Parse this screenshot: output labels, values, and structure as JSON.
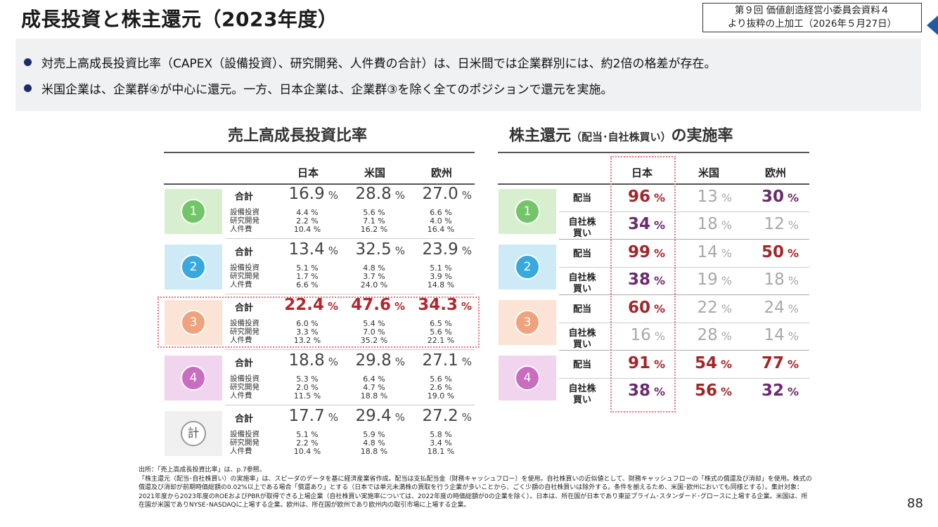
{
  "title": "成長投資と株主還元（2023年度）",
  "source_box": {
    "line1": "第９回 価値創造経営小委員会資料４",
    "line2": "より抜粋の上加工（2026年５月27日）"
  },
  "bullets": [
    "対売上高成長投資比率（CAPEX（設備投資）、研究開発、人件費の合計）は、日米間では企業群別には、約2倍の格差が存在。",
    "米国企業は、企業群④が中心に還元。一方、日本企業は、企業群③を除く全てのポジションで還元を実施。"
  ],
  "left": {
    "title": "売上高成長投資比率",
    "cols": [
      "日本",
      "米国",
      "欧州"
    ],
    "total_label": "合計",
    "sub_labels": [
      "設備投資",
      "研究開発",
      "人件費"
    ],
    "pct": "%",
    "groups": [
      {
        "badge": "1",
        "color": "#d7efcf",
        "circle": "#74c46a",
        "total": [
          "16.9",
          "28.8",
          "27.0"
        ],
        "sub": [
          [
            "4.4 %",
            "2.2 %",
            "10.4 %"
          ],
          [
            "5.6 %",
            "7.1 %",
            "16.2 %"
          ],
          [
            "6.6 %",
            "4.0 %",
            "16.4 %"
          ]
        ]
      },
      {
        "badge": "2",
        "color": "#cfeaf7",
        "circle": "#39a9dd",
        "total": [
          "13.4",
          "32.5",
          "23.9"
        ],
        "sub": [
          [
            "5.1 %",
            "1.7 %",
            "6.6 %"
          ],
          [
            "4.8 %",
            "3.7 %",
            "24.0 %"
          ],
          [
            "5.1 %",
            "3.9 %",
            "14.8 %"
          ]
        ]
      },
      {
        "badge": "3",
        "color": "#fbe3d6",
        "circle": "#eea27d",
        "total": [
          "22.4",
          "47.6",
          "34.3"
        ],
        "sub": [
          [
            "6.0 %",
            "3.3 %",
            "13.2 %"
          ],
          [
            "5.4 %",
            "7.0 %",
            "35.2 %"
          ],
          [
            "6.5 %",
            "5.6 %",
            "22.1 %"
          ]
        ]
      },
      {
        "badge": "4",
        "color": "#f1d4ee",
        "circle": "#c86dc0",
        "total": [
          "18.8",
          "29.8",
          "27.1"
        ],
        "sub": [
          [
            "5.3 %",
            "2.0 %",
            "11.5 %"
          ],
          [
            "6.4 %",
            "4.7 %",
            "18.8 %"
          ],
          [
            "5.6 %",
            "2.6 %",
            "19.0 %"
          ]
        ]
      },
      {
        "badge": "計",
        "color": "#f0f0f0",
        "circle": "#ffffff",
        "total": [
          "17.7",
          "29.4",
          "27.2"
        ],
        "sub": [
          [
            "5.1 %",
            "2.2 %",
            "10.4 %"
          ],
          [
            "5.9 %",
            "4.8 %",
            "18.8 %"
          ],
          [
            "5.8 %",
            "3.4 %",
            "18.1 %"
          ]
        ]
      }
    ]
  },
  "right": {
    "title_main": "株主還元",
    "title_paren": "（配当･自社株買い）",
    "title_end": "の実施率",
    "cols": [
      "日本",
      "米国",
      "欧州"
    ],
    "row_labels": [
      "配当",
      "自社株\n買い"
    ],
    "pct": "%",
    "groups": [
      {
        "badge": "1",
        "color": "#d7efcf",
        "circle": "#74c46a",
        "rows": [
          [
            {
              "v": "96",
              "s": "dred"
            },
            {
              "v": "13",
              "s": "gray"
            },
            {
              "v": "30",
              "s": "purp"
            }
          ],
          [
            {
              "v": "34",
              "s": "purp"
            },
            {
              "v": "18",
              "s": "gray"
            },
            {
              "v": "12",
              "s": "gray"
            }
          ]
        ]
      },
      {
        "badge": "2",
        "color": "#cfeaf7",
        "circle": "#39a9dd",
        "rows": [
          [
            {
              "v": "99",
              "s": "dred"
            },
            {
              "v": "14",
              "s": "gray"
            },
            {
              "v": "50",
              "s": "dred"
            }
          ],
          [
            {
              "v": "38",
              "s": "purp"
            },
            {
              "v": "19",
              "s": "gray"
            },
            {
              "v": "18",
              "s": "gray"
            }
          ]
        ]
      },
      {
        "badge": "3",
        "color": "#fbe3d6",
        "circle": "#eea27d",
        "rows": [
          [
            {
              "v": "60",
              "s": "dred"
            },
            {
              "v": "22",
              "s": "gray"
            },
            {
              "v": "24",
              "s": "gray"
            }
          ],
          [
            {
              "v": "16",
              "s": "gray"
            },
            {
              "v": "28",
              "s": "gray"
            },
            {
              "v": "14",
              "s": "gray"
            }
          ]
        ]
      },
      {
        "badge": "4",
        "color": "#f1d4ee",
        "circle": "#c86dc0",
        "rows": [
          [
            {
              "v": "91",
              "s": "dred"
            },
            {
              "v": "54",
              "s": "dred"
            },
            {
              "v": "77",
              "s": "dred"
            }
          ],
          [
            {
              "v": "38",
              "s": "purp"
            },
            {
              "v": "56",
              "s": "dred"
            },
            {
              "v": "32",
              "s": "purp"
            }
          ]
        ]
      }
    ]
  },
  "footnotes": [
    "出所：「売上高成長投資比率」は、p.7参照。",
    "「株主還元（配当･自社株買い）の実施率」は、スピーダのデータを基に経済産業省作成。配当は支払配当金（財務キャッシュフロー）を使用。自社株買いの近似値として、財務キャッシュフローの「株式の償還及び消却」を使用。株式の償還及び消却が前期時価総額の0.02%以上である場合「償還あり」とする（日本では単元未満株の買取を行う企業が多いことから、ごく少額の自社株買いは除外する。条件を揃えるため、米国･欧州においても同様とする）。集計対象：2021年度から2023年度のROEおよびPBRが取得できる上場企業（自社株買い実施率については、2022年度の時価総額が0の企業を除く）。日本は、所在国が日本であり東証プライム･スタンダード･グロースに上場する企業。米国は、所在国が米国でありNYSE･NASDAQに上場する企業。欧州は、所在国が欧州であり欧州内の取引市場に上場する企業。"
  ],
  "page_number": "88"
}
